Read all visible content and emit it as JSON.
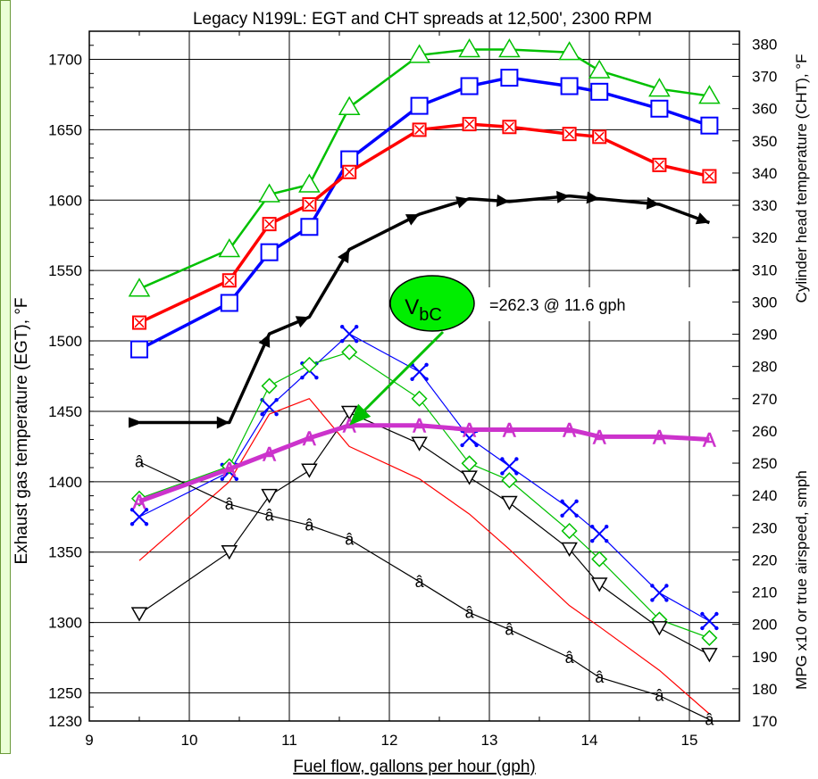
{
  "chart_data": {
    "type": "line",
    "title": "Legacy N199L:  EGT and CHT spreads at 12,500', 2300 RPM",
    "xlabel": "Fuel flow, gallons per hour (gph)",
    "ylabel_left": "Exhaust gas temperature (EGT), °F",
    "ylabel_right_top": "Cylinder head temperature (CHT), °F",
    "ylabel_right_bottom": "MPG x10 or true airspeed, smph",
    "xlim": [
      9,
      15.5
    ],
    "ylim_left": [
      1230,
      1720
    ],
    "ylim_right": [
      170,
      384
    ],
    "x_ticks": [
      "9",
      "10",
      "11",
      "12",
      "13",
      "14",
      "15"
    ],
    "y_left_ticks": [
      "1230",
      "1250",
      "1300",
      "1350",
      "1400",
      "1450",
      "1500",
      "1550",
      "1600",
      "1650",
      "1700"
    ],
    "y_right_ticks": [
      "170",
      "180",
      "190",
      "200",
      "210",
      "220",
      "230",
      "240",
      "250",
      "260",
      "270",
      "280",
      "290",
      "300",
      "310",
      "320",
      "330",
      "340",
      "350",
      "360",
      "370",
      "380"
    ],
    "grid": true,
    "series": [
      {
        "axis": "left",
        "color": "#00c000",
        "width": 2.5,
        "marker": "triangle",
        "x": [
          9.5,
          10.4,
          10.8,
          11.2,
          11.6,
          12.3,
          12.8,
          13.2,
          13.8,
          14.1,
          14.7,
          15.2
        ],
        "y": [
          1537,
          1565,
          1604,
          1611,
          1666,
          1703,
          1707,
          1707,
          1705,
          1692,
          1679,
          1674
        ]
      },
      {
        "axis": "left",
        "color": "#0000ff",
        "width": 3.5,
        "marker": "square",
        "x": [
          9.5,
          10.4,
          10.8,
          11.2,
          11.6,
          12.3,
          12.8,
          13.2,
          13.8,
          14.1,
          14.7,
          15.2
        ],
        "y": [
          1494,
          1527,
          1563,
          1581,
          1629,
          1667,
          1681,
          1687,
          1681,
          1677,
          1665,
          1653
        ]
      },
      {
        "axis": "left",
        "color": "#ff0000",
        "width": 3.5,
        "marker": "crossbox",
        "x": [
          9.5,
          10.4,
          10.8,
          11.2,
          11.6,
          12.3,
          12.8,
          13.2,
          13.8,
          14.1,
          14.7,
          15.2
        ],
        "y": [
          1513,
          1543,
          1583,
          1597,
          1620,
          1650,
          1654,
          1652,
          1647,
          1645,
          1625,
          1617
        ]
      },
      {
        "axis": "left",
        "color": "#000000",
        "width": 3.5,
        "marker": "arrow",
        "x": [
          9.5,
          10.4,
          10.8,
          11.2,
          11.6,
          12.3,
          12.8,
          13.2,
          13.8,
          14.1,
          14.7,
          15.2
        ],
        "y": [
          1442,
          1442,
          1505,
          1517,
          1565,
          1590,
          1601,
          1599,
          1603,
          1601,
          1597,
          1584
        ]
      },
      {
        "axis": "left",
        "color": "#0000ff",
        "width": 1.2,
        "marker": "xcross",
        "x": [
          9.5,
          10.4,
          10.8,
          11.2,
          11.6,
          12.3,
          12.8,
          13.2,
          13.8,
          14.1,
          14.7,
          15.2
        ],
        "y": [
          1375,
          1407,
          1453,
          1479,
          1505,
          1478,
          1431,
          1411,
          1381,
          1363,
          1321,
          1301
        ]
      },
      {
        "axis": "left",
        "color": "#00c000",
        "width": 1.2,
        "marker": "diamond",
        "x": [
          9.5,
          10.4,
          10.8,
          11.2,
          11.6,
          12.3,
          12.8,
          13.2,
          13.8,
          14.1,
          14.7,
          15.2
        ],
        "y": [
          1388,
          1411,
          1468,
          1483,
          1492,
          1459,
          1413,
          1401,
          1365,
          1345,
          1302,
          1289
        ]
      },
      {
        "axis": "left",
        "color": "#ff0000",
        "width": 1.2,
        "marker": "none",
        "x": [
          9.5,
          10.4,
          10.8,
          11.2,
          11.6,
          12.3,
          12.8,
          13.2,
          13.8,
          14.1,
          14.7,
          15.2
        ],
        "y": [
          1344,
          1400,
          1448,
          1459,
          1425,
          1402,
          1377,
          1352,
          1312,
          1297,
          1266,
          1235
        ]
      },
      {
        "axis": "left",
        "color": "#000000",
        "width": 1.2,
        "marker": "invtriangle",
        "x": [
          9.5,
          10.4,
          10.8,
          11.2,
          11.6,
          12.3,
          12.8,
          13.2,
          13.8,
          14.1,
          14.7,
          15.2
        ],
        "y": [
          1306,
          1350,
          1390,
          1408,
          1449,
          1427,
          1403,
          1385,
          1352,
          1327,
          1296,
          1277
        ]
      },
      {
        "axis": "left",
        "color": "#000000",
        "width": 1.2,
        "marker": "text",
        "marker_text": "â",
        "x": [
          9.5,
          10.4,
          10.8,
          11.2,
          11.6,
          12.3,
          12.8,
          13.2,
          13.8,
          14.1,
          14.7,
          15.2
        ],
        "y": [
          1414,
          1384,
          1376,
          1369,
          1359,
          1329,
          1307,
          1295,
          1275,
          1261,
          1248,
          1231
        ]
      },
      {
        "axis": "left",
        "color": "#cc33cc",
        "width": 5,
        "marker": "text",
        "marker_text": "A",
        "x": [
          9.5,
          10.4,
          10.8,
          11.2,
          11.6,
          12.3,
          12.8,
          13.2,
          13.8,
          14.1,
          14.7,
          15.2
        ],
        "y": [
          1386,
          1409,
          1420,
          1431,
          1440,
          1440,
          1437,
          1437,
          1437,
          1432,
          1432,
          1430
        ]
      }
    ],
    "annotation": {
      "label_main": "V",
      "label_sub": "bC",
      "text": "=262.3 @ 11.6 gph",
      "bubble_color": "#00ee00",
      "arrow_color": "#00c000",
      "points_to": {
        "x": 11.6,
        "y": 1440
      }
    }
  }
}
